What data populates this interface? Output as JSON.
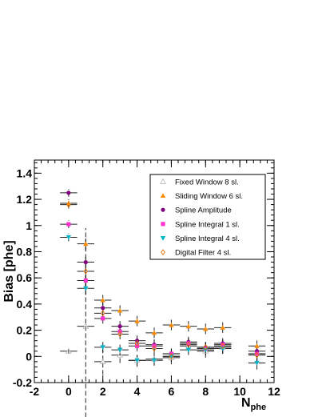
{
  "chart_data": {
    "type": "scatter",
    "title": "",
    "xlabel": "N",
    "xlabel_sub": "phe",
    "ylabel": "Bias [phe]",
    "xlim": [
      -2,
      12
    ],
    "ylim": [
      -0.2,
      1.5
    ],
    "x_ticks": [
      -2,
      0,
      2,
      4,
      6,
      8,
      10,
      12
    ],
    "y_ticks": [
      -0.2,
      0,
      0.2,
      0.4,
      0.6,
      0.8,
      1,
      1.2,
      1.4
    ],
    "x_tick_labels": [
      "-2",
      "0",
      "2",
      "4",
      "6",
      "8",
      "10",
      "12"
    ],
    "y_tick_labels": [
      "-0.2",
      "0",
      "0.2",
      "0.4",
      "0.6",
      "0.8",
      "1",
      "1.2",
      "1.4"
    ],
    "grid": false,
    "legend_position": "top-right",
    "series": [
      {
        "name": "Fixed Window 8 sl.",
        "marker": "triangle-up-open",
        "color": "#bbbbbb",
        "x": [
          0,
          1,
          2,
          3,
          4,
          5,
          6,
          7,
          8,
          9,
          11
        ],
        "y": [
          0.04,
          0.23,
          -0.04,
          0.01,
          -0.03,
          -0.02,
          -0.01,
          0.08,
          0.04,
          0.07,
          0.02
        ],
        "yerr": [
          0.02,
          0.75,
          0.1,
          0.06,
          0.05,
          0.05,
          0.05,
          0.05,
          0.05,
          0.05,
          0.06
        ]
      },
      {
        "name": "Sliding Window 6 sl.",
        "marker": "triangle-up",
        "color": "#ff8c00",
        "x": [
          0,
          1,
          2,
          3,
          4,
          5,
          6,
          7,
          8,
          9,
          11
        ],
        "y": [
          1.17,
          0.86,
          0.43,
          0.35,
          0.27,
          0.18,
          0.24,
          0.23,
          0.21,
          0.22,
          0.08
        ],
        "yerr": [
          0.03,
          0.05,
          0.04,
          0.04,
          0.04,
          0.04,
          0.04,
          0.04,
          0.04,
          0.04,
          0.05
        ]
      },
      {
        "name": "Spline Amplitude",
        "marker": "circle",
        "color": "#800080",
        "x": [
          0,
          1,
          2,
          3,
          4,
          5,
          6,
          7,
          8,
          9,
          11
        ],
        "y": [
          1.25,
          0.72,
          0.37,
          0.23,
          0.12,
          0.09,
          0.02,
          0.11,
          0.07,
          0.1,
          0.04
        ],
        "yerr": [
          0.03,
          0.05,
          0.04,
          0.04,
          0.04,
          0.04,
          0.04,
          0.04,
          0.04,
          0.04,
          0.05
        ]
      },
      {
        "name": "Spline Integral 1 sl.",
        "marker": "square",
        "color": "#ff33cc",
        "x": [
          0,
          1,
          2,
          3,
          4,
          5,
          6,
          7,
          8,
          9,
          11
        ],
        "y": [
          1.01,
          0.58,
          0.29,
          0.19,
          0.08,
          0.08,
          0.02,
          0.1,
          0.06,
          0.09,
          0.02
        ],
        "yerr": [
          0.03,
          0.05,
          0.04,
          0.04,
          0.04,
          0.04,
          0.04,
          0.04,
          0.04,
          0.04,
          0.05
        ]
      },
      {
        "name": "Spline Integral 4 sl.",
        "marker": "triangle-down",
        "color": "#00b4c8",
        "x": [
          0,
          1,
          2,
          3,
          4,
          5,
          6,
          7,
          8,
          9,
          11
        ],
        "y": [
          0.91,
          0.52,
          0.07,
          0.05,
          -0.03,
          -0.03,
          0.0,
          0.05,
          0.05,
          0.06,
          -0.05
        ],
        "yerr": [
          0.03,
          0.05,
          0.04,
          0.04,
          0.04,
          0.04,
          0.04,
          0.04,
          0.04,
          0.04,
          0.05
        ]
      },
      {
        "name": "Digital Filter 4 sl.",
        "marker": "diamond-open",
        "color": "#e07000",
        "x": [
          0,
          1,
          2,
          3,
          4,
          5,
          6,
          7,
          8,
          9,
          11
        ],
        "y": [
          1.16,
          0.65,
          0.33,
          0.17,
          0.1,
          0.06,
          0.0,
          0.09,
          0.07,
          0.08,
          0.01
        ],
        "yerr": [
          0.03,
          0.05,
          0.04,
          0.04,
          0.04,
          0.04,
          0.04,
          0.04,
          0.04,
          0.04,
          0.05
        ]
      }
    ]
  }
}
